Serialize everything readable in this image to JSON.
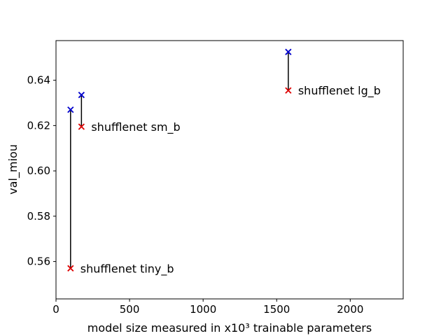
{
  "chart_data": {
    "type": "scatter",
    "title": "",
    "xlabel": "model size measured in x10³ trainable parameters",
    "ylabel": "val_miou",
    "xlim": [
      0,
      2360
    ],
    "ylim": [
      0.5435,
      0.6575
    ],
    "xticks": [
      0,
      500,
      1000,
      1500,
      2000
    ],
    "xtick_labels": [
      "0",
      "500",
      "1000",
      "1500",
      "2000"
    ],
    "yticks": [
      0.56,
      0.58,
      0.6,
      0.62,
      0.64
    ],
    "ytick_labels": [
      "0.56",
      "0.58",
      "0.60",
      "0.62",
      "0.64"
    ],
    "grid": false,
    "legend": "none",
    "series": [
      {
        "color": "#0000cc",
        "marker": "x",
        "points": [
          {
            "x": 99,
            "y": 0.627
          },
          {
            "x": 173,
            "y": 0.6335
          },
          {
            "x": 1579,
            "y": 0.6525
          }
        ]
      },
      {
        "color": "#dd0000",
        "marker": "x",
        "points": [
          {
            "x": 99,
            "y": 0.557
          },
          {
            "x": 173,
            "y": 0.6195
          },
          {
            "x": 1579,
            "y": 0.6355
          }
        ]
      }
    ],
    "connectors": [
      {
        "x": 99,
        "y_from": 0.627,
        "y_to": 0.557
      },
      {
        "x": 173,
        "y_from": 0.6335,
        "y_to": 0.6195
      },
      {
        "x": 1579,
        "y_from": 0.6525,
        "y_to": 0.6355
      }
    ],
    "annotations": [
      {
        "text": "shufflenet tiny_b",
        "x": 99,
        "y": 0.557
      },
      {
        "text": "shufflenet sm_b",
        "x": 173,
        "y": 0.6195
      },
      {
        "text": "shufflenet lg_b",
        "x": 1579,
        "y": 0.6355
      }
    ]
  }
}
